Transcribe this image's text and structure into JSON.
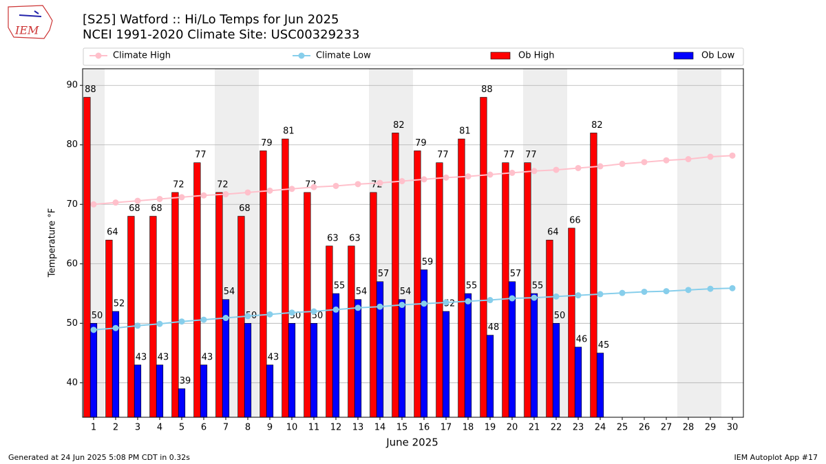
{
  "logo": "IEM",
  "footer_left": "Generated at 24 Jun 2025 5:08 PM CDT in 0.32s",
  "footer_right": "IEM Autoplot App #17",
  "chart_data": {
    "type": "bar",
    "title": "[S25] Watford :: Hi/Lo Temps for Jun 2025",
    "subtitle": "NCEI 1991-2020 Climate Site: USC00329233",
    "x_label": "June 2025",
    "y_label": "Temperature °F",
    "x": [
      1,
      2,
      3,
      4,
      5,
      6,
      7,
      8,
      9,
      10,
      11,
      12,
      13,
      14,
      15,
      16,
      17,
      18,
      19,
      20,
      21,
      22,
      23,
      24,
      25,
      26,
      27,
      28,
      29,
      30
    ],
    "xlim": [
      0.5,
      30.5
    ],
    "xticks": [
      1,
      2,
      3,
      4,
      5,
      6,
      7,
      8,
      9,
      10,
      11,
      12,
      13,
      14,
      15,
      16,
      17,
      18,
      19,
      20,
      21,
      22,
      23,
      24,
      25,
      26,
      27,
      28,
      29,
      30
    ],
    "ylim": [
      34.2,
      92.8
    ],
    "yticks": [
      40,
      50,
      60,
      70,
      80,
      90
    ],
    "grid": true,
    "shaded_x": [
      1,
      7,
      8,
      14,
      15,
      21,
      22,
      28,
      29
    ],
    "shade_color": "#eeeeee",
    "series": [
      {
        "name": "Climate High",
        "color": "pink",
        "kind": "line",
        "values": [
          70.0,
          70.3,
          70.6,
          70.9,
          71.2,
          71.5,
          71.7,
          72.0,
          72.3,
          72.6,
          72.9,
          73.1,
          73.4,
          73.6,
          73.9,
          74.2,
          74.5,
          74.7,
          75.0,
          75.3,
          75.6,
          75.8,
          76.1,
          76.4,
          76.8,
          77.1,
          77.4,
          77.6,
          78.0,
          78.2
        ]
      },
      {
        "name": "Climate Low",
        "color": "skyblue",
        "kind": "line",
        "values": [
          48.9,
          49.2,
          49.6,
          49.9,
          50.3,
          50.6,
          50.9,
          51.2,
          51.5,
          51.8,
          52.0,
          52.3,
          52.6,
          52.8,
          53.1,
          53.3,
          53.5,
          53.7,
          53.9,
          54.2,
          54.3,
          54.5,
          54.7,
          54.9,
          55.1,
          55.3,
          55.4,
          55.6,
          55.8,
          55.9
        ]
      },
      {
        "name": "Ob High",
        "color": "red",
        "kind": "bar",
        "values": [
          88,
          64,
          68,
          68,
          72,
          77,
          72,
          68,
          79,
          81,
          72,
          63,
          63,
          72,
          82,
          79,
          77,
          81,
          88,
          77,
          77,
          64,
          66,
          82,
          null,
          null,
          null,
          null,
          null,
          null
        ]
      },
      {
        "name": "Ob Low",
        "color": "blue",
        "kind": "bar",
        "values": [
          50,
          52,
          43,
          43,
          39,
          43,
          54,
          50,
          43,
          50,
          50,
          55,
          54,
          57,
          54,
          59,
          52,
          55,
          48,
          57,
          55,
          50,
          46,
          45,
          null,
          null,
          null,
          null,
          null,
          null
        ]
      }
    ]
  }
}
